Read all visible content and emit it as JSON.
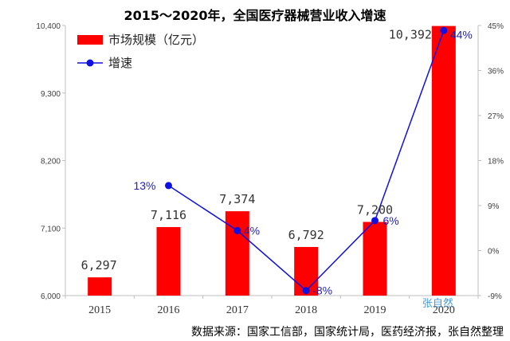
{
  "chart_data": {
    "type": "bar",
    "title": "2015～2020年，全国医疗器械营业收入增速",
    "categories": [
      "2015",
      "2016",
      "2017",
      "2018",
      "2019",
      "2020"
    ],
    "series": [
      {
        "name": "市场规模（亿元）",
        "type": "bar",
        "axis": "left",
        "color": "#ff0000",
        "values": [
          6297,
          7116,
          7374,
          6792,
          7200,
          10392
        ],
        "labels": [
          "6,297",
          "7,116",
          "7,374",
          "6,792",
          "7,200",
          "10,392"
        ]
      },
      {
        "name": "增速",
        "type": "line",
        "axis": "right",
        "color": "#1010e0",
        "values": [
          null,
          13,
          4,
          -8,
          6,
          44
        ],
        "labels": [
          "",
          "13%",
          "4%",
          "-8%",
          "6%",
          "44%"
        ]
      }
    ],
    "y_left": {
      "ylim": [
        6000,
        10400
      ],
      "ticks": [
        6000,
        7100,
        8200,
        9300,
        10400
      ],
      "tick_labels": [
        "6,000",
        "7,100",
        "8,200",
        "9,300",
        "10,400"
      ]
    },
    "y_right": {
      "ylim": [
        -9,
        45
      ],
      "ticks": [
        -9,
        0,
        9,
        18,
        27,
        36,
        45
      ],
      "tick_labels": [
        "-9%",
        "0%",
        "9%",
        "18%",
        "27%",
        "36%",
        "45%"
      ]
    },
    "grid": false,
    "legend": "top-left"
  },
  "source": "数据来源：国家工信部，国家统计局，医药经济报，张自然整理",
  "watermark": "张自然"
}
